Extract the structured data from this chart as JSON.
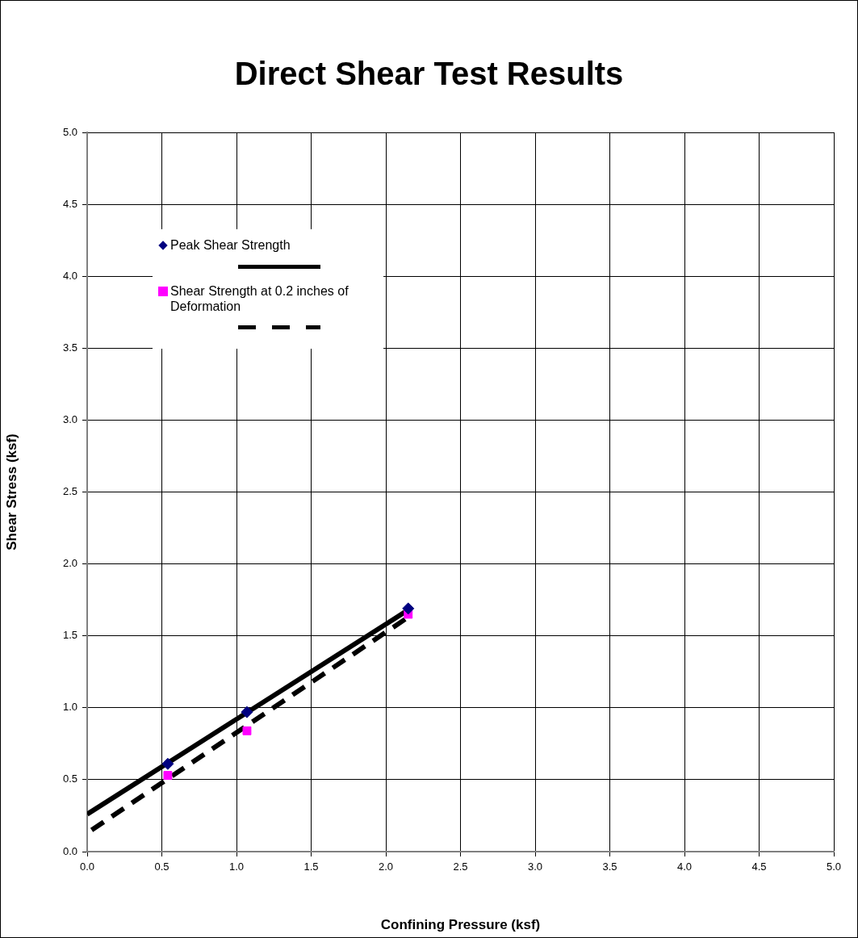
{
  "chart_data": {
    "type": "scatter",
    "title": "Direct Shear Test Results",
    "xlabel": "Confining Pressure (ksf)",
    "ylabel": "Shear Stress (ksf)",
    "xlim": [
      0,
      5
    ],
    "xticks": [
      {
        "value": 0,
        "label": "0.0"
      },
      {
        "value": 0.5,
        "label": "0.5"
      },
      {
        "value": 1,
        "label": "1.0"
      },
      {
        "value": 1.5,
        "label": "1.5"
      },
      {
        "value": 2,
        "label": "2.0"
      },
      {
        "value": 2.5,
        "label": "2.5"
      },
      {
        "value": 3,
        "label": "3.0"
      },
      {
        "value": 3.5,
        "label": "3.5"
      },
      {
        "value": 4,
        "label": "4.0"
      },
      {
        "value": 4.5,
        "label": "4.5"
      },
      {
        "value": 5,
        "label": "5.0"
      }
    ],
    "ylim": [
      0,
      5
    ],
    "yticks": [
      {
        "value": 0,
        "label": "0.0"
      },
      {
        "value": 0.5,
        "label": "0.5"
      },
      {
        "value": 1,
        "label": "1.0"
      },
      {
        "value": 1.5,
        "label": "1.5"
      },
      {
        "value": 2,
        "label": "2.0"
      },
      {
        "value": 2.5,
        "label": "2.5"
      },
      {
        "value": 3,
        "label": "3.0"
      },
      {
        "value": 3.5,
        "label": "3.5"
      },
      {
        "value": 4,
        "label": "4.0"
      },
      {
        "value": 4.5,
        "label": "4.5"
      },
      {
        "value": 5,
        "label": "5.0"
      }
    ],
    "grid": true,
    "legend": "top left",
    "series": [
      {
        "name": "Peak Shear Strength",
        "type": "scatter",
        "color": "#000080",
        "marker": "diamond",
        "x": [
          0.54,
          1.07,
          2.15
        ],
        "values": [
          0.61,
          0.97,
          1.69
        ]
      },
      {
        "type": "line",
        "color": "#000000",
        "marker": "none",
        "line_style": "solid",
        "x": [
          0,
          2.15
        ],
        "values": [
          0.26,
          1.68
        ]
      },
      {
        "name": "Shear Strength at 0.2 inches of Deformation",
        "type": "scatter",
        "color": "#ff00ff",
        "marker": "square",
        "x": [
          0.54,
          1.07,
          2.15
        ],
        "values": [
          0.53,
          0.84,
          1.65
        ]
      },
      {
        "type": "line",
        "color": "#000000",
        "marker": "none",
        "line_style": "dashed",
        "x": [
          0.03,
          2.15
        ],
        "values": [
          0.15,
          1.63
        ]
      }
    ]
  }
}
